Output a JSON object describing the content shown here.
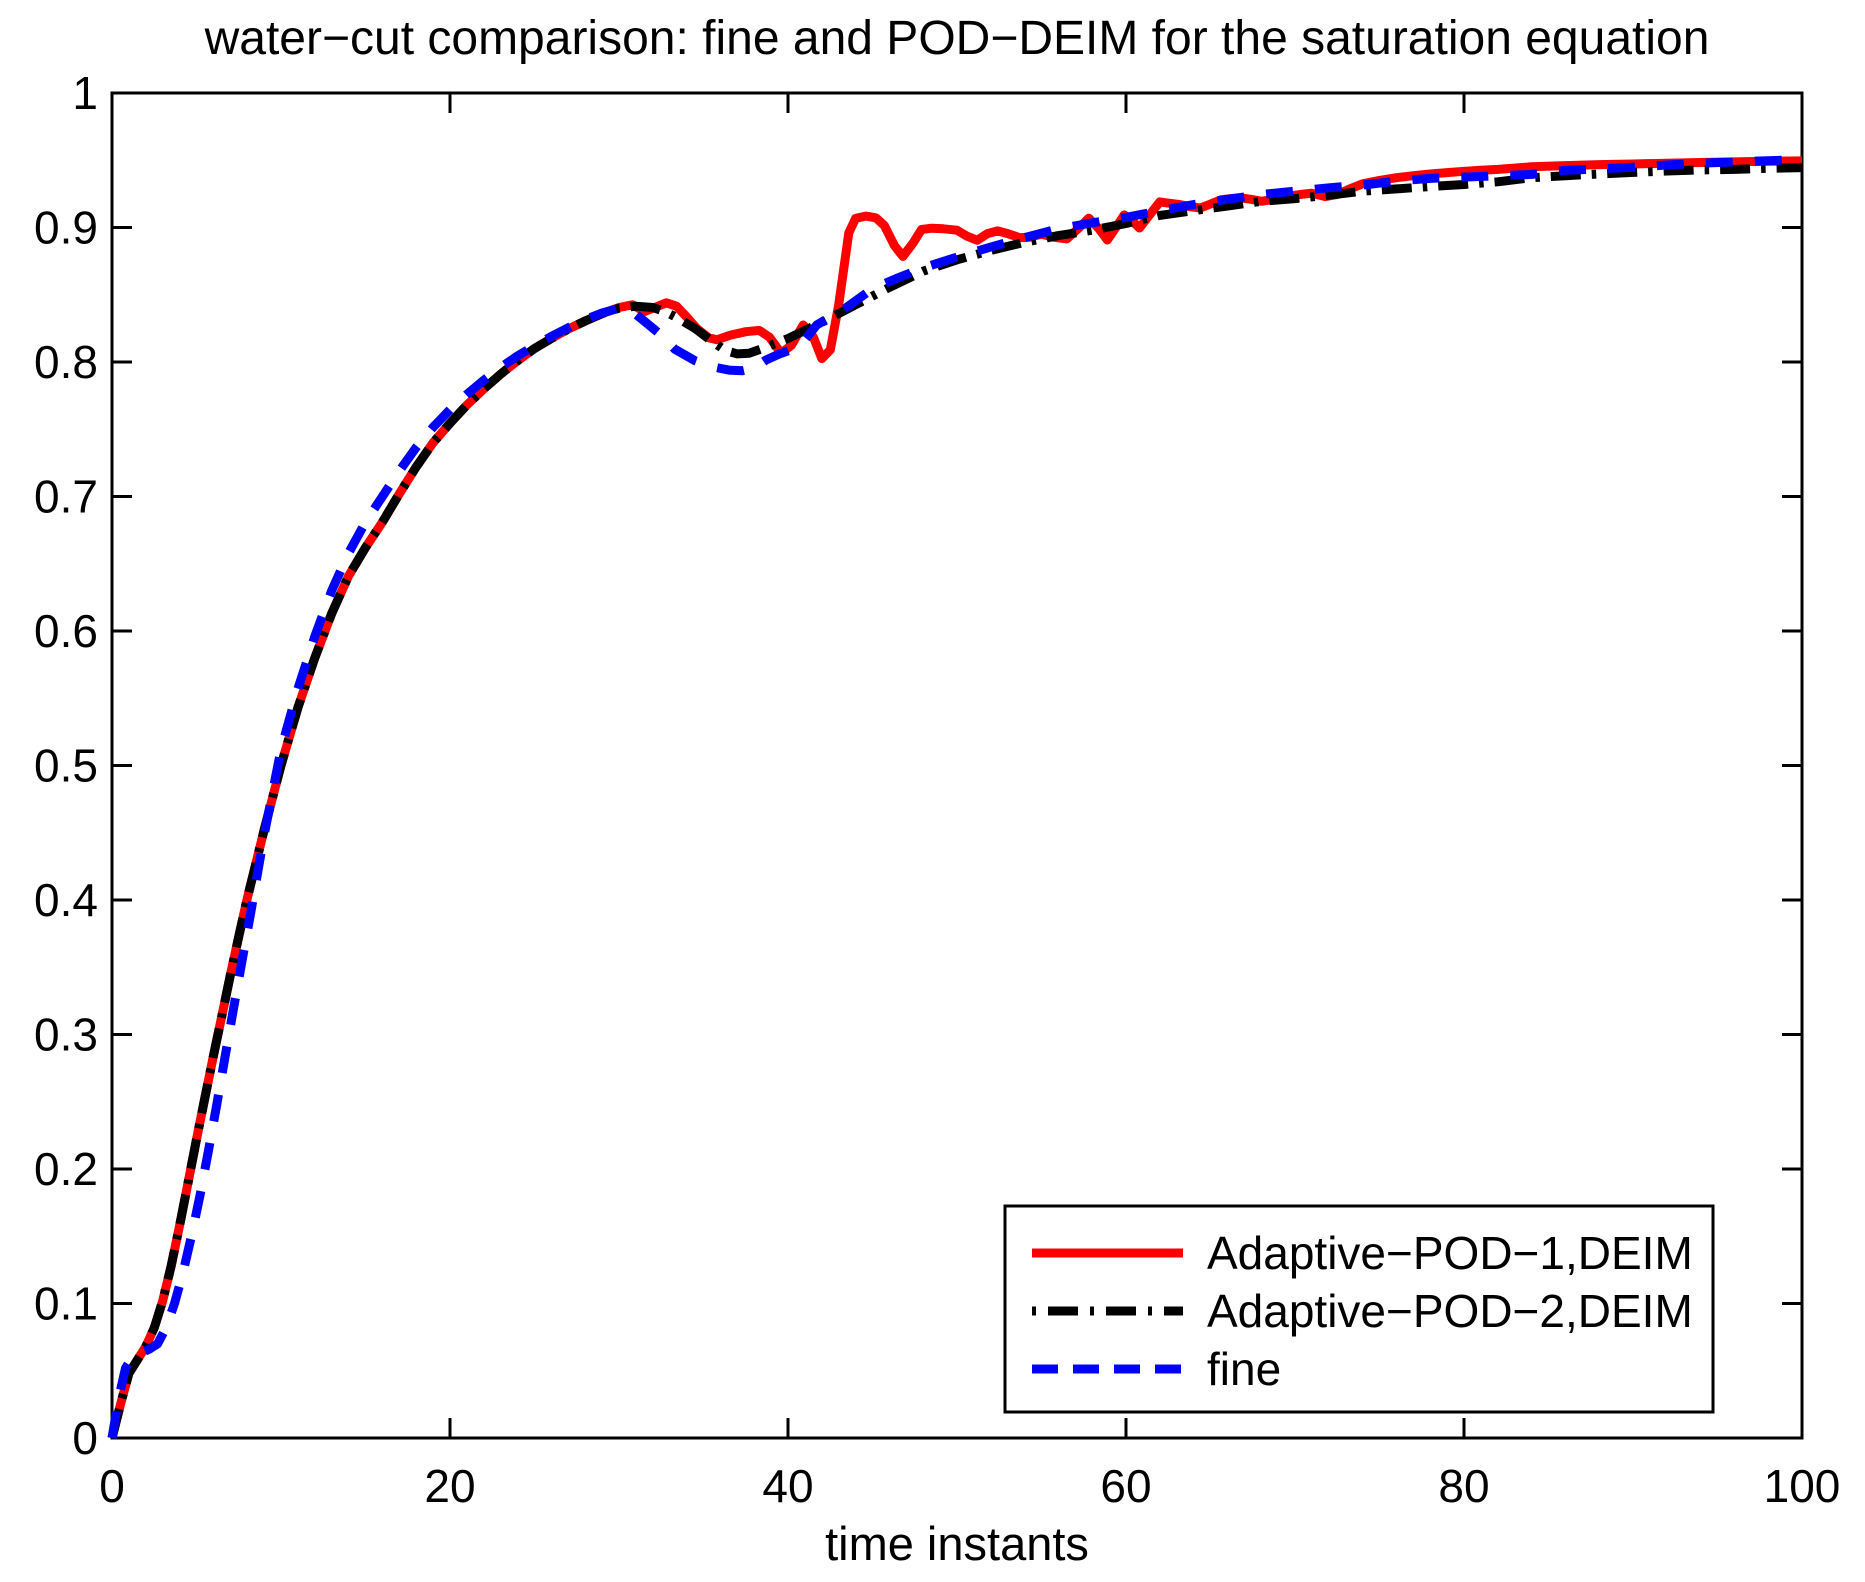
{
  "chart_data": {
    "type": "line",
    "title": "water−cut comparison: fine and POD−DEIM for the saturation equation",
    "xlabel": "time instants",
    "ylabel": "",
    "xlim": [
      0,
      100
    ],
    "ylim": [
      0,
      1
    ],
    "x_ticks": [
      0,
      20,
      40,
      60,
      80,
      100
    ],
    "x_tick_labels": [
      "0",
      "20",
      "40",
      "60",
      "80",
      "100"
    ],
    "y_ticks": [
      0,
      0.1,
      0.2,
      0.3,
      0.4,
      0.5,
      0.6,
      0.7,
      0.8,
      0.9,
      1
    ],
    "y_tick_labels": [
      "0",
      "0.1",
      "0.2",
      "0.3",
      "0.4",
      "0.5",
      "0.6",
      "0.7",
      "0.8",
      "0.9",
      "1"
    ],
    "grid": false,
    "legend_position": "lower right",
    "axis_color": "#000000",
    "background_color": "#ffffff",
    "series": [
      {
        "name": "Adaptive−POD−1,DEIM",
        "color": "#ff0000",
        "style": "solid",
        "width": 9,
        "points": [
          [
            0,
            0
          ],
          [
            0.5,
            0.025
          ],
          [
            1,
            0.048
          ],
          [
            1.5,
            0.058
          ],
          [
            2,
            0.068
          ],
          [
            2.5,
            0.082
          ],
          [
            3,
            0.102
          ],
          [
            3.5,
            0.128
          ],
          [
            4,
            0.158
          ],
          [
            4.5,
            0.19
          ],
          [
            5,
            0.222
          ],
          [
            5.5,
            0.253
          ],
          [
            6,
            0.284
          ],
          [
            6.5,
            0.314
          ],
          [
            7,
            0.344
          ],
          [
            7.5,
            0.373
          ],
          [
            8,
            0.401
          ],
          [
            9,
            0.452
          ],
          [
            10,
            0.5
          ],
          [
            11,
            0.543
          ],
          [
            12,
            0.58
          ],
          [
            13,
            0.613
          ],
          [
            14,
            0.641
          ],
          [
            15,
            0.662
          ],
          [
            16,
            0.681
          ],
          [
            17,
            0.702
          ],
          [
            18,
            0.722
          ],
          [
            19,
            0.74
          ],
          [
            20,
            0.7545
          ],
          [
            21,
            0.768
          ],
          [
            22,
            0.78
          ],
          [
            23,
            0.791
          ],
          [
            24,
            0.801
          ],
          [
            25,
            0.81
          ],
          [
            26,
            0.8175
          ],
          [
            27,
            0.8245
          ],
          [
            28,
            0.8305
          ],
          [
            29,
            0.836
          ],
          [
            30,
            0.8405
          ],
          [
            30.8,
            0.8425
          ],
          [
            31.5,
            0.8375
          ],
          [
            32.2,
            0.841
          ],
          [
            32.8,
            0.844
          ],
          [
            33.4,
            0.8415
          ],
          [
            34,
            0.8335
          ],
          [
            34.6,
            0.825
          ],
          [
            35.3,
            0.818
          ],
          [
            35.8,
            0.8165
          ],
          [
            36.6,
            0.82
          ],
          [
            37.5,
            0.8225
          ],
          [
            38.3,
            0.8235
          ],
          [
            38.9,
            0.8185
          ],
          [
            39.6,
            0.8065
          ],
          [
            40.2,
            0.8125
          ],
          [
            40.9,
            0.8275
          ],
          [
            41.5,
            0.8185
          ],
          [
            42,
            0.8025
          ],
          [
            42.5,
            0.809
          ],
          [
            43,
            0.8425
          ],
          [
            43.6,
            0.896
          ],
          [
            44,
            0.9068
          ],
          [
            44.6,
            0.9085
          ],
          [
            45.2,
            0.9072
          ],
          [
            45.7,
            0.9015
          ],
          [
            46.3,
            0.8865
          ],
          [
            46.8,
            0.8785
          ],
          [
            47.4,
            0.8885
          ],
          [
            47.9,
            0.8985
          ],
          [
            48.5,
            0.8995
          ],
          [
            49.2,
            0.899
          ],
          [
            50,
            0.898
          ],
          [
            50.6,
            0.8935
          ],
          [
            51.2,
            0.8905
          ],
          [
            51.8,
            0.8955
          ],
          [
            52.4,
            0.8975
          ],
          [
            53,
            0.8955
          ],
          [
            53.7,
            0.8925
          ],
          [
            54.3,
            0.8928
          ],
          [
            55,
            0.895
          ],
          [
            55.7,
            0.8928
          ],
          [
            56.5,
            0.8915
          ],
          [
            57.2,
            0.8995
          ],
          [
            57.8,
            0.907
          ],
          [
            58.4,
            0.899
          ],
          [
            58.9,
            0.8907
          ],
          [
            59.4,
            0.9
          ],
          [
            59.9,
            0.9094
          ],
          [
            60.4,
            0.9045
          ],
          [
            60.8,
            0.8996
          ],
          [
            61.4,
            0.9095
          ],
          [
            62,
            0.919
          ],
          [
            62.6,
            0.918
          ],
          [
            63.2,
            0.917
          ],
          [
            63.8,
            0.9155
          ],
          [
            64.4,
            0.9145
          ],
          [
            65,
            0.9175
          ],
          [
            65.6,
            0.9205
          ],
          [
            66.2,
            0.9215
          ],
          [
            66.8,
            0.922
          ],
          [
            67.4,
            0.921
          ],
          [
            68,
            0.9195
          ],
          [
            68.8,
            0.921
          ],
          [
            69.7,
            0.9235
          ],
          [
            70.5,
            0.9248
          ],
          [
            71,
            0.9255
          ],
          [
            71.8,
            0.923
          ],
          [
            72.5,
            0.9245
          ],
          [
            73.2,
            0.9285
          ],
          [
            74,
            0.9325
          ],
          [
            75,
            0.935
          ],
          [
            76,
            0.937
          ],
          [
            77,
            0.9385
          ],
          [
            78,
            0.9398
          ],
          [
            79,
            0.9408
          ],
          [
            80,
            0.9418
          ],
          [
            81,
            0.9425
          ],
          [
            82,
            0.9432
          ],
          [
            83,
            0.9442
          ],
          [
            84,
            0.9452
          ],
          [
            86,
            0.946
          ],
          [
            88,
            0.9468
          ],
          [
            90,
            0.9472
          ],
          [
            92,
            0.9478
          ],
          [
            94,
            0.9483
          ],
          [
            96,
            0.9488
          ],
          [
            98,
            0.9492
          ],
          [
            100,
            0.9495
          ]
        ]
      },
      {
        "name": "Adaptive−POD−2,DEIM",
        "color": "#000000",
        "style": "dashdot",
        "width": 9,
        "points": [
          [
            0,
            0
          ],
          [
            0.5,
            0.025
          ],
          [
            1,
            0.048
          ],
          [
            1.5,
            0.058
          ],
          [
            2,
            0.068
          ],
          [
            2.5,
            0.082
          ],
          [
            3,
            0.102
          ],
          [
            3.5,
            0.128
          ],
          [
            4,
            0.158
          ],
          [
            4.5,
            0.19
          ],
          [
            5,
            0.222
          ],
          [
            5.5,
            0.253
          ],
          [
            6,
            0.284
          ],
          [
            6.5,
            0.314
          ],
          [
            7,
            0.344
          ],
          [
            7.5,
            0.373
          ],
          [
            8,
            0.401
          ],
          [
            9,
            0.452
          ],
          [
            10,
            0.5
          ],
          [
            11,
            0.543
          ],
          [
            12,
            0.58
          ],
          [
            13,
            0.613
          ],
          [
            14,
            0.641
          ],
          [
            15,
            0.662
          ],
          [
            16,
            0.681
          ],
          [
            17,
            0.702
          ],
          [
            18,
            0.722
          ],
          [
            19,
            0.74
          ],
          [
            20,
            0.7545
          ],
          [
            21,
            0.768
          ],
          [
            22,
            0.78
          ],
          [
            23,
            0.791
          ],
          [
            24,
            0.801
          ],
          [
            25,
            0.81
          ],
          [
            26,
            0.8175
          ],
          [
            27,
            0.8245
          ],
          [
            28,
            0.8305
          ],
          [
            29,
            0.836
          ],
          [
            30,
            0.84
          ],
          [
            31,
            0.8415
          ],
          [
            32,
            0.8405
          ],
          [
            32.8,
            0.837
          ],
          [
            33.5,
            0.8325
          ],
          [
            34.5,
            0.825
          ],
          [
            35.5,
            0.8155
          ],
          [
            36.3,
            0.8085
          ],
          [
            37,
            0.806
          ],
          [
            37.7,
            0.8065
          ],
          [
            38.5,
            0.81
          ],
          [
            40,
            0.8175
          ],
          [
            42,
            0.8295
          ],
          [
            44,
            0.8425
          ],
          [
            46,
            0.8555
          ],
          [
            48,
            0.8675
          ],
          [
            50,
            0.876
          ],
          [
            52,
            0.883
          ],
          [
            54,
            0.889
          ],
          [
            56,
            0.894
          ],
          [
            58,
            0.898
          ],
          [
            60,
            0.903
          ],
          [
            62,
            0.909
          ],
          [
            64,
            0.9125
          ],
          [
            66,
            0.916
          ],
          [
            68,
            0.9195
          ],
          [
            70,
            0.9215
          ],
          [
            72,
            0.924
          ],
          [
            74,
            0.927
          ],
          [
            76,
            0.9287
          ],
          [
            78,
            0.9305
          ],
          [
            80,
            0.932
          ],
          [
            82,
            0.934
          ],
          [
            84,
            0.937
          ],
          [
            86,
            0.9385
          ],
          [
            88,
            0.9398
          ],
          [
            90,
            0.941
          ],
          [
            92,
            0.942
          ],
          [
            94,
            0.9428
          ],
          [
            96,
            0.9432
          ],
          [
            98,
            0.944
          ],
          [
            100,
            0.9445
          ]
        ]
      },
      {
        "name": "fine",
        "color": "#0000ff",
        "style": "dashed",
        "width": 9,
        "points": [
          [
            0,
            0
          ],
          [
            0.4,
            0.03
          ],
          [
            0.8,
            0.052
          ],
          [
            1.2,
            0.06
          ],
          [
            1.7,
            0.063
          ],
          [
            2.2,
            0.066
          ],
          [
            2.7,
            0.07
          ],
          [
            3.2,
            0.082
          ],
          [
            3.7,
            0.1
          ],
          [
            4.2,
            0.123
          ],
          [
            4.7,
            0.15
          ],
          [
            5.2,
            0.18
          ],
          [
            5.7,
            0.213
          ],
          [
            6.2,
            0.248
          ],
          [
            6.7,
            0.284
          ],
          [
            7.2,
            0.32
          ],
          [
            7.7,
            0.355
          ],
          [
            8.2,
            0.39
          ],
          [
            9,
            0.448
          ],
          [
            10,
            0.512
          ],
          [
            11,
            0.557
          ],
          [
            12,
            0.596
          ],
          [
            13,
            0.63
          ],
          [
            14,
            0.658
          ],
          [
            15,
            0.681
          ],
          [
            16,
            0.7
          ],
          [
            17,
            0.719
          ],
          [
            18,
            0.7365
          ],
          [
            19,
            0.7515
          ],
          [
            20,
            0.7645
          ],
          [
            21,
            0.776
          ],
          [
            22,
            0.7865
          ],
          [
            23,
            0.796
          ],
          [
            24,
            0.8045
          ],
          [
            25,
            0.812
          ],
          [
            26,
            0.819
          ],
          [
            27,
            0.8255
          ],
          [
            28,
            0.8315
          ],
          [
            29,
            0.8365
          ],
          [
            30,
            0.84
          ],
          [
            31,
            0.8355
          ],
          [
            32.3,
            0.822
          ],
          [
            33.3,
            0.8095
          ],
          [
            34.5,
            0.801
          ],
          [
            35.5,
            0.7965
          ],
          [
            36.5,
            0.794
          ],
          [
            37.3,
            0.7935
          ],
          [
            38,
            0.7955
          ],
          [
            38.7,
            0.8015
          ],
          [
            39.5,
            0.806
          ],
          [
            40.4,
            0.81
          ],
          [
            41,
            0.8165
          ],
          [
            41.7,
            0.8275
          ],
          [
            42.5,
            0.8335
          ],
          [
            43.4,
            0.84
          ],
          [
            45,
            0.8545
          ],
          [
            46.4,
            0.862
          ],
          [
            48,
            0.87
          ],
          [
            50,
            0.878
          ],
          [
            52,
            0.8855
          ],
          [
            54,
            0.8925
          ],
          [
            56,
            0.899
          ],
          [
            58,
            0.9035
          ],
          [
            60,
            0.9075
          ],
          [
            62,
            0.9125
          ],
          [
            64,
            0.917
          ],
          [
            66,
            0.921
          ],
          [
            68,
            0.9245
          ],
          [
            70,
            0.927
          ],
          [
            72,
            0.9295
          ],
          [
            74,
            0.9315
          ],
          [
            76,
            0.9345
          ],
          [
            78,
            0.9365
          ],
          [
            80,
            0.9375
          ],
          [
            82,
            0.9385
          ],
          [
            84,
            0.9395
          ],
          [
            86,
            0.9425
          ],
          [
            88,
            0.9435
          ],
          [
            90,
            0.9448
          ],
          [
            92,
            0.9465
          ],
          [
            94,
            0.9478
          ],
          [
            96,
            0.9488
          ],
          [
            98,
            0.9497
          ],
          [
            100,
            0.9505
          ]
        ]
      }
    ],
    "legend": {
      "entries": [
        "Adaptive−POD−1,DEIM",
        "Adaptive−POD−2,DEIM",
        "fine"
      ]
    }
  }
}
